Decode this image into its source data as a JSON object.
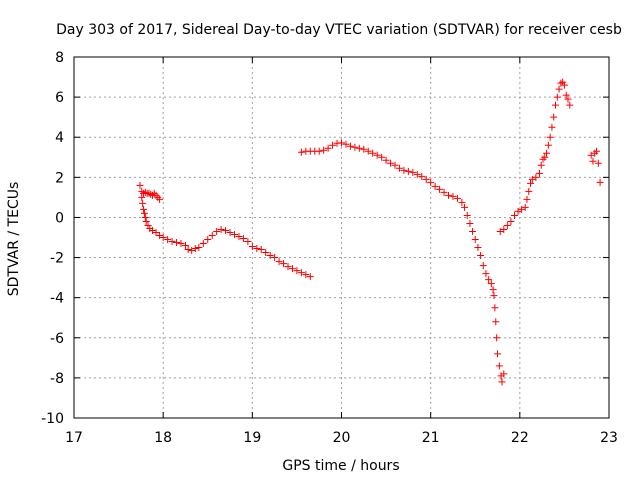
{
  "chart_data": {
    "type": "scatter",
    "title": "Day 303 of 2017, Sidereal Day-to-day VTEC variation (SDTVAR) for receiver cesb",
    "xlabel": "GPS time / hours",
    "ylabel": "SDTVAR / TECUs",
    "xlim": [
      17,
      23
    ],
    "ylim": [
      -10,
      8
    ],
    "x_ticks": [
      17,
      18,
      19,
      20,
      21,
      22,
      23
    ],
    "y_ticks": [
      -10,
      -8,
      -6,
      -4,
      -2,
      0,
      2,
      4,
      6,
      8
    ],
    "grid": true,
    "marker": "plus",
    "color": "#ff0000",
    "series": [
      {
        "name": "SDTVAR segment 1",
        "points": [
          [
            17.74,
            1.6
          ],
          [
            17.76,
            1.3
          ],
          [
            17.78,
            1.2
          ],
          [
            17.8,
            1.25
          ],
          [
            17.82,
            1.2
          ],
          [
            17.84,
            1.2
          ],
          [
            17.86,
            1.15
          ],
          [
            17.88,
            1.1
          ],
          [
            17.9,
            1.2
          ],
          [
            17.92,
            1.1
          ],
          [
            17.94,
            1.0
          ],
          [
            17.96,
            0.9
          ],
          [
            17.76,
            1.0
          ],
          [
            17.77,
            0.7
          ],
          [
            17.78,
            0.4
          ],
          [
            17.79,
            0.2
          ],
          [
            17.8,
            0.0
          ],
          [
            17.81,
            -0.2
          ],
          [
            17.83,
            -0.4
          ],
          [
            17.85,
            -0.55
          ],
          [
            17.88,
            -0.65
          ],
          [
            17.92,
            -0.75
          ],
          [
            17.96,
            -0.9
          ],
          [
            18.0,
            -1.0
          ],
          [
            18.05,
            -1.1
          ],
          [
            18.1,
            -1.2
          ],
          [
            18.15,
            -1.25
          ],
          [
            18.2,
            -1.3
          ],
          [
            18.25,
            -1.4
          ],
          [
            18.28,
            -1.6
          ],
          [
            18.32,
            -1.65
          ],
          [
            18.36,
            -1.55
          ],
          [
            18.4,
            -1.5
          ],
          [
            18.45,
            -1.3
          ],
          [
            18.5,
            -1.1
          ],
          [
            18.55,
            -0.9
          ],
          [
            18.6,
            -0.7
          ],
          [
            18.65,
            -0.6
          ],
          [
            18.7,
            -0.65
          ],
          [
            18.75,
            -0.75
          ],
          [
            18.8,
            -0.85
          ],
          [
            18.85,
            -0.95
          ],
          [
            18.9,
            -1.05
          ],
          [
            18.95,
            -1.2
          ],
          [
            19.0,
            -1.45
          ],
          [
            19.05,
            -1.55
          ],
          [
            19.1,
            -1.6
          ],
          [
            19.15,
            -1.75
          ],
          [
            19.2,
            -1.9
          ],
          [
            19.25,
            -2.0
          ],
          [
            19.3,
            -2.2
          ],
          [
            19.35,
            -2.3
          ],
          [
            19.4,
            -2.45
          ],
          [
            19.45,
            -2.55
          ],
          [
            19.5,
            -2.65
          ],
          [
            19.55,
            -2.75
          ],
          [
            19.6,
            -2.85
          ],
          [
            19.65,
            -2.95
          ]
        ]
      },
      {
        "name": "SDTVAR segment 2",
        "points": [
          [
            19.55,
            3.25
          ],
          [
            19.6,
            3.3
          ],
          [
            19.65,
            3.3
          ],
          [
            19.7,
            3.3
          ],
          [
            19.75,
            3.3
          ],
          [
            19.8,
            3.35
          ],
          [
            19.85,
            3.45
          ],
          [
            19.9,
            3.6
          ],
          [
            19.95,
            3.7
          ],
          [
            20.0,
            3.72
          ],
          [
            20.05,
            3.65
          ],
          [
            20.1,
            3.55
          ],
          [
            20.15,
            3.5
          ],
          [
            20.2,
            3.45
          ],
          [
            20.25,
            3.4
          ],
          [
            20.3,
            3.3
          ],
          [
            20.35,
            3.2
          ],
          [
            20.4,
            3.1
          ],
          [
            20.45,
            3.0
          ],
          [
            20.5,
            2.85
          ],
          [
            20.55,
            2.7
          ],
          [
            20.6,
            2.6
          ],
          [
            20.65,
            2.45
          ],
          [
            20.7,
            2.35
          ],
          [
            20.75,
            2.3
          ],
          [
            20.8,
            2.25
          ],
          [
            20.85,
            2.15
          ],
          [
            20.9,
            2.05
          ],
          [
            20.95,
            1.9
          ],
          [
            21.0,
            1.75
          ],
          [
            21.05,
            1.55
          ],
          [
            21.1,
            1.4
          ],
          [
            21.15,
            1.25
          ],
          [
            21.2,
            1.1
          ],
          [
            21.25,
            1.05
          ],
          [
            21.3,
            0.95
          ],
          [
            21.35,
            0.75
          ],
          [
            21.38,
            0.5
          ],
          [
            21.41,
            0.1
          ],
          [
            21.44,
            -0.3
          ],
          [
            21.47,
            -0.7
          ],
          [
            21.5,
            -1.1
          ],
          [
            21.53,
            -1.5
          ],
          [
            21.56,
            -1.9
          ],
          [
            21.59,
            -2.4
          ],
          [
            21.62,
            -2.8
          ],
          [
            21.65,
            -3.1
          ],
          [
            21.68,
            -3.3
          ],
          [
            21.7,
            -3.6
          ],
          [
            21.71,
            -3.9
          ],
          [
            21.72,
            -4.5
          ],
          [
            21.73,
            -5.2
          ],
          [
            21.74,
            -6.0
          ],
          [
            21.75,
            -6.8
          ],
          [
            21.77,
            -7.4
          ],
          [
            21.79,
            -7.9
          ],
          [
            21.8,
            -8.2
          ],
          [
            21.82,
            -7.8
          ]
        ]
      },
      {
        "name": "SDTVAR segment 3",
        "points": [
          [
            21.78,
            -0.7
          ],
          [
            21.82,
            -0.6
          ],
          [
            21.86,
            -0.4
          ],
          [
            21.9,
            -0.2
          ],
          [
            21.94,
            0.1
          ],
          [
            21.98,
            0.3
          ],
          [
            22.02,
            0.4
          ],
          [
            22.06,
            0.5
          ],
          [
            22.08,
            0.9
          ],
          [
            22.1,
            1.3
          ],
          [
            22.12,
            1.7
          ],
          [
            22.14,
            1.9
          ],
          [
            22.18,
            2.0
          ],
          [
            22.22,
            2.2
          ],
          [
            22.24,
            2.6
          ],
          [
            22.26,
            2.9
          ],
          [
            22.28,
            3.0
          ],
          [
            22.3,
            3.2
          ],
          [
            22.32,
            3.6
          ],
          [
            22.34,
            4.0
          ],
          [
            22.36,
            4.5
          ],
          [
            22.38,
            5.0
          ],
          [
            22.4,
            5.6
          ],
          [
            22.42,
            6.0
          ],
          [
            22.44,
            6.4
          ],
          [
            22.46,
            6.7
          ],
          [
            22.48,
            6.75
          ],
          [
            22.5,
            6.6
          ],
          [
            22.52,
            6.1
          ],
          [
            22.54,
            5.9
          ],
          [
            22.56,
            5.6
          ],
          [
            22.8,
            3.1
          ],
          [
            22.82,
            2.8
          ],
          [
            22.84,
            3.2
          ],
          [
            22.86,
            3.3
          ],
          [
            22.88,
            2.7
          ],
          [
            22.9,
            1.75
          ]
        ]
      }
    ]
  }
}
